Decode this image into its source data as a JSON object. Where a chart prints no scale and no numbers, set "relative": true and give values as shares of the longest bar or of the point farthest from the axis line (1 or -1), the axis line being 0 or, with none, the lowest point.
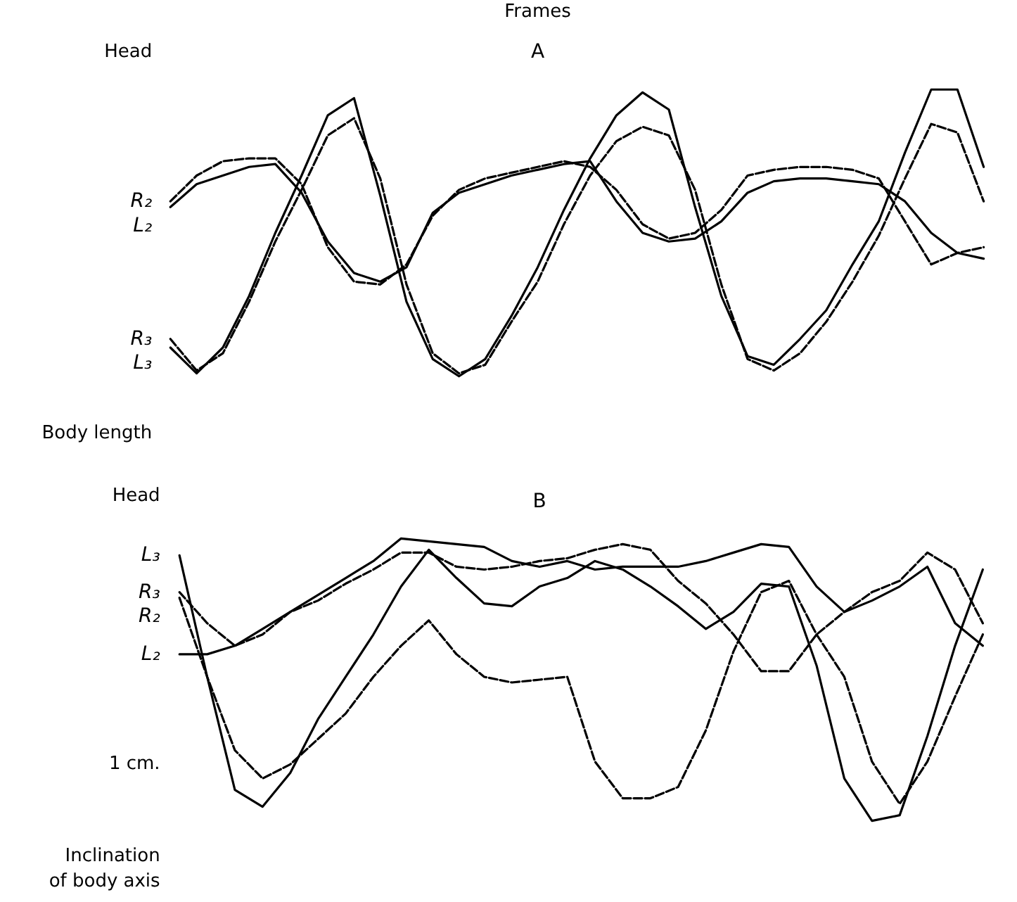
{
  "chart_data": [
    {
      "type": "line",
      "title": "A",
      "relative": true,
      "grid": false,
      "annotations": [
        "Frames",
        "Head",
        "Body length"
      ],
      "categories": [
        null,
        null,
        null,
        null,
        null,
        null,
        null,
        null,
        null,
        null,
        null,
        null,
        null,
        null,
        null,
        null,
        null,
        null,
        null,
        null,
        null,
        null,
        null,
        null,
        null,
        null,
        null,
        null,
        null,
        null,
        null,
        null
      ],
      "series": [
        {
          "name": "R₂",
          "color": "#000000",
          "line_style": "dashed",
          "values": [
            0.61,
            0.7,
            0.75,
            0.76,
            0.76,
            0.67,
            0.45,
            0.33,
            0.32,
            0.39,
            0.56,
            0.65,
            0.69,
            0.71,
            0.73,
            0.75,
            0.73,
            0.65,
            0.53,
            0.48,
            0.5,
            0.58,
            0.7,
            0.72,
            0.73,
            0.73,
            0.72,
            0.69,
            0.54,
            0.39,
            0.43,
            0.45
          ]
        },
        {
          "name": "L₂",
          "color": "#000000",
          "line_style": "solid",
          "values": [
            0.59,
            0.67,
            0.7,
            0.73,
            0.74,
            0.64,
            0.47,
            0.36,
            0.33,
            0.38,
            0.57,
            0.64,
            0.67,
            0.7,
            0.72,
            0.74,
            0.75,
            0.61,
            0.5,
            0.47,
            0.48,
            0.54,
            0.64,
            0.68,
            0.69,
            0.69,
            0.68,
            0.67,
            0.61,
            0.5,
            0.43,
            0.41
          ]
        },
        {
          "name": "L₃",
          "color": "#000000",
          "line_style": "solid",
          "values": [
            0.1,
            0.01,
            0.1,
            0.28,
            0.5,
            0.7,
            0.91,
            0.97,
            0.63,
            0.26,
            0.06,
            0,
            0.06,
            0.21,
            0.38,
            0.58,
            0.76,
            0.91,
            0.99,
            0.93,
            0.59,
            0.28,
            0.07,
            0.04,
            0.13,
            0.23,
            0.39,
            0.54,
            0.78,
            1,
            1,
            0.73
          ]
        },
        {
          "name": "R₃",
          "color": "#000000",
          "line_style": "dashed",
          "values": [
            0.13,
            0.02,
            0.08,
            0.26,
            0.47,
            0.65,
            0.84,
            0.9,
            0.69,
            0.32,
            0.08,
            0.01,
            0.04,
            0.19,
            0.33,
            0.53,
            0.7,
            0.82,
            0.87,
            0.84,
            0.65,
            0.32,
            0.06,
            0.02,
            0.08,
            0.19,
            0.33,
            0.49,
            0.69,
            0.88,
            0.85,
            0.61
          ]
        }
      ]
    },
    {
      "type": "line",
      "title": "B",
      "relative": true,
      "grid": false,
      "annotations": [
        "Head",
        "1 cm.",
        "Inclination of body axis"
      ],
      "categories": [
        null,
        null,
        null,
        null,
        null,
        null,
        null,
        null,
        null,
        null,
        null,
        null,
        null,
        null,
        null,
        null,
        null,
        null,
        null,
        null,
        null,
        null,
        null,
        null,
        null,
        null,
        null,
        null,
        null,
        null
      ],
      "series": [
        {
          "name": "L₃",
          "color": "#000000",
          "line_style": "solid",
          "values": [
            0.94,
            0.51,
            0.11,
            0.05,
            0.17,
            0.36,
            0.51,
            0.66,
            0.83,
            0.96,
            0.86,
            0.77,
            0.76,
            0.83,
            0.86,
            0.92,
            0.89,
            0.83,
            0.76,
            0.68,
            0.74,
            0.84,
            0.83,
            0.55,
            0.15,
            0,
            0.02,
            0.3,
            0.62,
            0.89
          ]
        },
        {
          "name": "R₃",
          "color": "#000000",
          "line_style": "dashed",
          "values": [
            0.81,
            0.7,
            0.62,
            0.66,
            0.74,
            0.78,
            0.84,
            0.89,
            0.95,
            0.95,
            0.9,
            0.89,
            0.9,
            0.92,
            0.93,
            0.96,
            0.98,
            0.96,
            0.85,
            0.77,
            0.66,
            0.53,
            0.53,
            0.66,
            0.74,
            0.81,
            0.85,
            0.95,
            0.89,
            0.7
          ]
        },
        {
          "name": "R₂",
          "color": "#000000",
          "line_style": "dashed",
          "values": [
            0.79,
            0.51,
            0.25,
            0.15,
            0.2,
            0.29,
            0.38,
            0.51,
            0.62,
            0.71,
            0.59,
            0.51,
            0.49,
            0.5,
            0.51,
            0.21,
            0.08,
            0.08,
            0.12,
            0.32,
            0.6,
            0.81,
            0.85,
            0.66,
            0.51,
            0.21,
            0.06,
            0.21,
            0.44,
            0.66
          ]
        },
        {
          "name": "L₂",
          "color": "#000000",
          "line_style": "solid",
          "values": [
            0.59,
            0.59,
            0.62,
            0.68,
            0.74,
            0.8,
            0.86,
            0.92,
            1,
            0.99,
            0.98,
            0.97,
            0.92,
            0.9,
            0.92,
            0.89,
            0.9,
            0.9,
            0.9,
            0.92,
            0.95,
            0.98,
            0.97,
            0.83,
            0.74,
            0.78,
            0.83,
            0.9,
            0.7,
            0.62
          ]
        }
      ]
    }
  ]
}
